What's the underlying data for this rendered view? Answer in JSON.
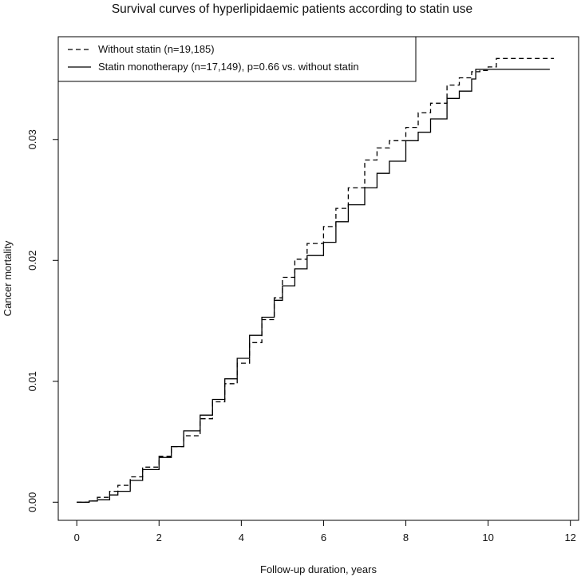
{
  "chart_data": {
    "type": "line",
    "title": "Survival curves of hyperlipidaemic patients according to statin use",
    "xlabel": "Follow-up duration, years",
    "ylabel": "Cancer mortality",
    "xlim": [
      -0.45,
      12.2
    ],
    "ylim": [
      -0.0015,
      0.0385
    ],
    "x_ticks": [
      0,
      2,
      4,
      6,
      8,
      10,
      12
    ],
    "y_ticks": [
      0.0,
      0.01,
      0.02,
      0.03
    ],
    "x_tick_labels": [
      "0",
      "2",
      "4",
      "6",
      "8",
      "10",
      "12"
    ],
    "y_tick_labels": [
      "0.00",
      "0.01",
      "0.02",
      "0.03"
    ],
    "grid": false,
    "legend": {
      "placement": "top-left",
      "entries": [
        "Without statin (n=19,185)",
        "Statin monotherapy (n=17,149), p=0.66 vs. without statin"
      ]
    },
    "series": [
      {
        "name": "Without statin (n=19,185)",
        "line_style": "dashed",
        "color": "#000000",
        "x": [
          0,
          0.3,
          0.5,
          0.8,
          1.0,
          1.3,
          1.6,
          2.0,
          2.3,
          2.6,
          3.0,
          3.3,
          3.6,
          3.9,
          4.2,
          4.5,
          4.8,
          5.0,
          5.3,
          5.6,
          6.0,
          6.3,
          6.6,
          7.0,
          7.3,
          7.6,
          8.0,
          8.3,
          8.6,
          9.0,
          9.3,
          9.6,
          9.8,
          10.0,
          10.2,
          10.6,
          11.0,
          11.3,
          11.6
        ],
        "y": [
          0,
          0.0001,
          0.0004,
          0.0009,
          0.0014,
          0.0021,
          0.0029,
          0.0038,
          0.0046,
          0.0055,
          0.0069,
          0.0083,
          0.0098,
          0.0115,
          0.0132,
          0.0151,
          0.0169,
          0.0186,
          0.0201,
          0.0214,
          0.0228,
          0.0243,
          0.026,
          0.0283,
          0.0293,
          0.0299,
          0.031,
          0.0322,
          0.033,
          0.0345,
          0.0351,
          0.0356,
          0.0357,
          0.036,
          0.0367,
          0.0367,
          0.0367,
          0.0367,
          0.0367
        ]
      },
      {
        "name": "Statin monotherapy (n=17,149), p=0.66 vs. without statin",
        "line_style": "solid",
        "color": "#000000",
        "x": [
          0,
          0.3,
          0.5,
          0.8,
          1.0,
          1.3,
          1.6,
          2.0,
          2.3,
          2.6,
          3.0,
          3.3,
          3.6,
          3.9,
          4.2,
          4.5,
          4.8,
          5.0,
          5.3,
          5.6,
          6.0,
          6.3,
          6.6,
          7.0,
          7.3,
          7.6,
          8.0,
          8.3,
          8.6,
          9.0,
          9.3,
          9.6,
          9.7,
          10.0,
          10.5,
          11.0,
          11.5
        ],
        "y": [
          0,
          0.0001,
          0.0002,
          0.0006,
          0.0009,
          0.0018,
          0.0027,
          0.0037,
          0.0046,
          0.0059,
          0.0072,
          0.0085,
          0.0102,
          0.0119,
          0.0138,
          0.0153,
          0.0167,
          0.0179,
          0.0193,
          0.0204,
          0.0215,
          0.0232,
          0.0246,
          0.026,
          0.0272,
          0.0282,
          0.0299,
          0.0306,
          0.0317,
          0.0334,
          0.034,
          0.035,
          0.0358,
          0.0358,
          0.0358,
          0.0358,
          0.0358
        ]
      }
    ]
  }
}
